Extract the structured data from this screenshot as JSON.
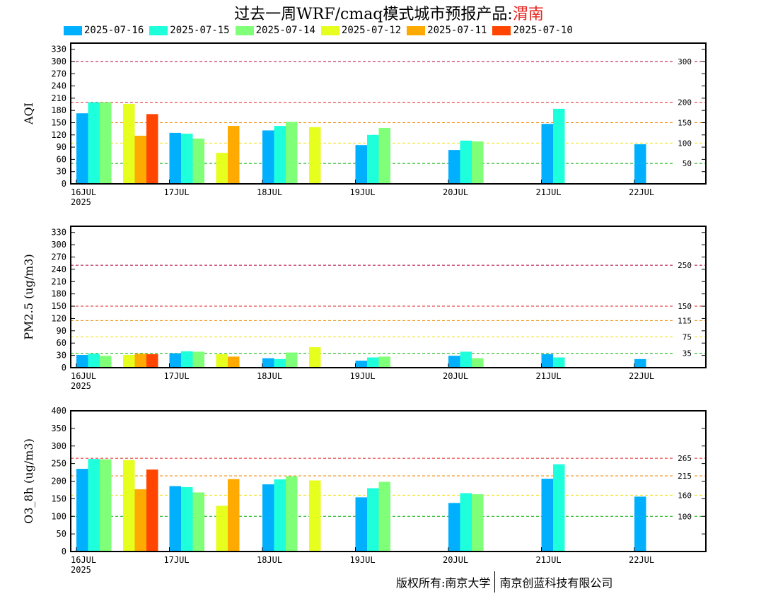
{
  "title": {
    "prefix": "过去一周WRF/cmaq模式城市预报产品:",
    "city": "渭南"
  },
  "legend": [
    {
      "label": "2025-07-16",
      "color": "#00b0ff"
    },
    {
      "label": "2025-07-15",
      "color": "#1effdc"
    },
    {
      "label": "2025-07-14",
      "color": "#80ff78"
    },
    {
      "label": "2025-07-12",
      "color": "#e6ff1e"
    },
    {
      "label": "2025-07-11",
      "color": "#ffaa00"
    },
    {
      "label": "2025-07-10",
      "color": "#ff4500"
    }
  ],
  "x_ticks": [
    "16JUL",
    "17JUL",
    "18JUL",
    "19JUL",
    "20JUL",
    "21JUL",
    "22JUL"
  ],
  "x_year": "2025",
  "footer": {
    "owner": "版权所有:南京大学",
    "company": "南京创蓝科技有限公司"
  },
  "chart_data": [
    {
      "type": "bar",
      "ylabel": "AQI",
      "ylim": [
        0,
        345
      ],
      "yticks": [
        0,
        30,
        45,
        60,
        75,
        90,
        105,
        120,
        135,
        150,
        165,
        180,
        195,
        210,
        225,
        240,
        255,
        270,
        285,
        300,
        315,
        330
      ],
      "ytick_labels": [
        "0",
        "30",
        "60",
        "90",
        "120",
        "150",
        "180",
        "210",
        "240",
        "270",
        "300",
        "330"
      ],
      "ytick_label_values": [
        0,
        30,
        60,
        90,
        120,
        150,
        180,
        210,
        240,
        270,
        300,
        330
      ],
      "thresholds": [
        {
          "value": 300,
          "label": "300",
          "color": "#b0003a"
        },
        {
          "value": 200,
          "label": "200",
          "color": "#e02020"
        },
        {
          "value": 150,
          "label": "150",
          "color": "#f08a00"
        },
        {
          "value": 100,
          "label": "100",
          "color": "#f0e000"
        },
        {
          "value": 50,
          "label": "50",
          "color": "#00b000"
        }
      ],
      "bars": [
        {
          "day": 0,
          "slot": 0,
          "series": 0,
          "value": 173
        },
        {
          "day": 0,
          "slot": 1,
          "series": 1,
          "value": 200
        },
        {
          "day": 0,
          "slot": 2,
          "series": 2,
          "value": 200
        },
        {
          "day": 0,
          "slot": 4,
          "series": 3,
          "value": 196
        },
        {
          "day": 0,
          "slot": 5,
          "series": 4,
          "value": 118
        },
        {
          "day": 0,
          "slot": 6,
          "series": 5,
          "value": 171
        },
        {
          "day": 1,
          "slot": 0,
          "series": 0,
          "value": 125
        },
        {
          "day": 1,
          "slot": 1,
          "series": 1,
          "value": 123
        },
        {
          "day": 1,
          "slot": 2,
          "series": 2,
          "value": 111
        },
        {
          "day": 1,
          "slot": 4,
          "series": 3,
          "value": 76
        },
        {
          "day": 1,
          "slot": 5,
          "series": 4,
          "value": 142
        },
        {
          "day": 2,
          "slot": 0,
          "series": 0,
          "value": 131
        },
        {
          "day": 2,
          "slot": 1,
          "series": 1,
          "value": 142
        },
        {
          "day": 2,
          "slot": 2,
          "series": 2,
          "value": 152
        },
        {
          "day": 2,
          "slot": 4,
          "series": 3,
          "value": 139
        },
        {
          "day": 3,
          "slot": 0,
          "series": 0,
          "value": 95
        },
        {
          "day": 3,
          "slot": 1,
          "series": 1,
          "value": 120
        },
        {
          "day": 3,
          "slot": 2,
          "series": 2,
          "value": 137
        },
        {
          "day": 4,
          "slot": 0,
          "series": 0,
          "value": 83
        },
        {
          "day": 4,
          "slot": 1,
          "series": 1,
          "value": 106
        },
        {
          "day": 4,
          "slot": 2,
          "series": 2,
          "value": 104
        },
        {
          "day": 5,
          "slot": 0,
          "series": 0,
          "value": 147
        },
        {
          "day": 5,
          "slot": 1,
          "series": 1,
          "value": 184
        },
        {
          "day": 6,
          "slot": 0,
          "series": 0,
          "value": 97
        }
      ]
    },
    {
      "type": "bar",
      "ylabel": "PM2.5 (ug/m3)",
      "ylim": [
        0,
        345
      ],
      "ytick_labels": [
        "0",
        "30",
        "60",
        "90",
        "120",
        "150",
        "180",
        "210",
        "240",
        "270",
        "300",
        "330"
      ],
      "ytick_label_values": [
        0,
        30,
        60,
        90,
        120,
        150,
        180,
        210,
        240,
        270,
        300,
        330
      ],
      "thresholds": [
        {
          "value": 250,
          "label": "250",
          "color": "#b0003a"
        },
        {
          "value": 150,
          "label": "150",
          "color": "#e02020"
        },
        {
          "value": 115,
          "label": "115",
          "color": "#f08a00"
        },
        {
          "value": 75,
          "label": "75",
          "color": "#f0e000"
        },
        {
          "value": 35,
          "label": "35",
          "color": "#00b000"
        }
      ],
      "bars": [
        {
          "day": 0,
          "slot": 0,
          "series": 0,
          "value": 31
        },
        {
          "day": 0,
          "slot": 1,
          "series": 1,
          "value": 34
        },
        {
          "day": 0,
          "slot": 2,
          "series": 2,
          "value": 29
        },
        {
          "day": 0,
          "slot": 4,
          "series": 3,
          "value": 31
        },
        {
          "day": 0,
          "slot": 5,
          "series": 4,
          "value": 34
        },
        {
          "day": 0,
          "slot": 6,
          "series": 5,
          "value": 33
        },
        {
          "day": 1,
          "slot": 0,
          "series": 0,
          "value": 35
        },
        {
          "day": 1,
          "slot": 1,
          "series": 1,
          "value": 40
        },
        {
          "day": 1,
          "slot": 2,
          "series": 2,
          "value": 39
        },
        {
          "day": 1,
          "slot": 4,
          "series": 3,
          "value": 33
        },
        {
          "day": 1,
          "slot": 5,
          "series": 4,
          "value": 27
        },
        {
          "day": 2,
          "slot": 0,
          "series": 0,
          "value": 23
        },
        {
          "day": 2,
          "slot": 1,
          "series": 1,
          "value": 21
        },
        {
          "day": 2,
          "slot": 2,
          "series": 2,
          "value": 37
        },
        {
          "day": 2,
          "slot": 4,
          "series": 3,
          "value": 50
        },
        {
          "day": 3,
          "slot": 0,
          "series": 0,
          "value": 17
        },
        {
          "day": 3,
          "slot": 1,
          "series": 1,
          "value": 25
        },
        {
          "day": 3,
          "slot": 2,
          "series": 2,
          "value": 27
        },
        {
          "day": 4,
          "slot": 0,
          "series": 0,
          "value": 29
        },
        {
          "day": 4,
          "slot": 1,
          "series": 1,
          "value": 39
        },
        {
          "day": 4,
          "slot": 2,
          "series": 2,
          "value": 23
        },
        {
          "day": 5,
          "slot": 0,
          "series": 0,
          "value": 33
        },
        {
          "day": 5,
          "slot": 1,
          "series": 1,
          "value": 25
        },
        {
          "day": 6,
          "slot": 0,
          "series": 0,
          "value": 21
        }
      ]
    },
    {
      "type": "bar",
      "ylabel": "O3_8h (ug/m3)",
      "ylim": [
        0,
        400
      ],
      "ytick_labels": [
        "0",
        "50",
        "100",
        "150",
        "200",
        "250",
        "300",
        "350",
        "400"
      ],
      "ytick_label_values": [
        0,
        50,
        100,
        150,
        200,
        250,
        300,
        350,
        400
      ],
      "thresholds": [
        {
          "value": 265,
          "label": "265",
          "color": "#e02020"
        },
        {
          "value": 215,
          "label": "215",
          "color": "#f08a00"
        },
        {
          "value": 160,
          "label": "160",
          "color": "#f0e000"
        },
        {
          "value": 100,
          "label": "100",
          "color": "#00b000"
        }
      ],
      "bars": [
        {
          "day": 0,
          "slot": 0,
          "series": 0,
          "value": 235
        },
        {
          "day": 0,
          "slot": 1,
          "series": 1,
          "value": 263
        },
        {
          "day": 0,
          "slot": 2,
          "series": 2,
          "value": 262
        },
        {
          "day": 0,
          "slot": 4,
          "series": 3,
          "value": 260
        },
        {
          "day": 0,
          "slot": 5,
          "series": 4,
          "value": 177
        },
        {
          "day": 0,
          "slot": 6,
          "series": 5,
          "value": 233
        },
        {
          "day": 1,
          "slot": 0,
          "series": 0,
          "value": 186
        },
        {
          "day": 1,
          "slot": 1,
          "series": 1,
          "value": 183
        },
        {
          "day": 1,
          "slot": 2,
          "series": 2,
          "value": 168
        },
        {
          "day": 1,
          "slot": 4,
          "series": 3,
          "value": 130
        },
        {
          "day": 1,
          "slot": 5,
          "series": 4,
          "value": 206
        },
        {
          "day": 2,
          "slot": 0,
          "series": 0,
          "value": 191
        },
        {
          "day": 2,
          "slot": 1,
          "series": 1,
          "value": 205
        },
        {
          "day": 2,
          "slot": 2,
          "series": 2,
          "value": 214
        },
        {
          "day": 2,
          "slot": 4,
          "series": 3,
          "value": 202
        },
        {
          "day": 3,
          "slot": 0,
          "series": 0,
          "value": 154
        },
        {
          "day": 3,
          "slot": 1,
          "series": 1,
          "value": 180
        },
        {
          "day": 3,
          "slot": 2,
          "series": 2,
          "value": 198
        },
        {
          "day": 4,
          "slot": 0,
          "series": 0,
          "value": 138
        },
        {
          "day": 4,
          "slot": 1,
          "series": 1,
          "value": 166
        },
        {
          "day": 4,
          "slot": 2,
          "series": 2,
          "value": 163
        },
        {
          "day": 5,
          "slot": 0,
          "series": 0,
          "value": 207
        },
        {
          "day": 5,
          "slot": 1,
          "series": 1,
          "value": 248
        },
        {
          "day": 6,
          "slot": 0,
          "series": 0,
          "value": 156
        }
      ]
    }
  ]
}
